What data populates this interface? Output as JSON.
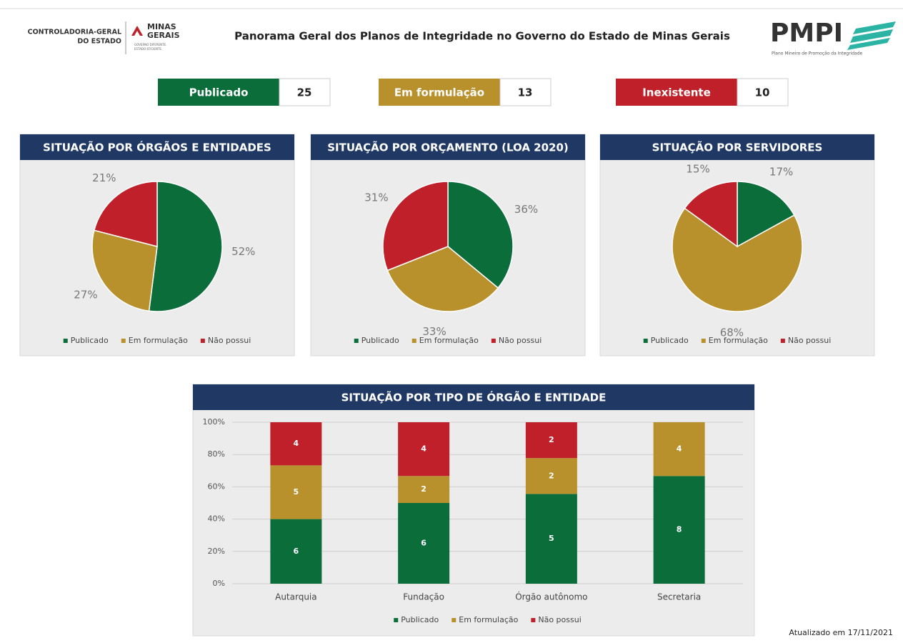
{
  "header": {
    "org": [
      "CONTROLADORIA-GERAL",
      "DO ESTADO"
    ],
    "brand": [
      "MINAS",
      "GERAIS"
    ],
    "brand_tagline": [
      "GOVERNO DIFERENTE.",
      "ESTADO EFICIENTE."
    ],
    "title": "Panorama Geral dos Planos de Integridade no Governo do Estado de Minas Gerais",
    "program": "PMPI",
    "program_name": "Plano Mineiro de Promoção da Integridade"
  },
  "kpis": [
    {
      "label": "Publicado",
      "value": 25,
      "color": "#0b6e3a"
    },
    {
      "label": "Em formulação",
      "value": 13,
      "color": "#b8902c"
    },
    {
      "label": "Inexistente",
      "value": 10,
      "color": "#c0202a"
    }
  ],
  "chart_data": [
    {
      "type": "pie",
      "title": "SITUAÇÃO POR ÓRGÃOS E ENTIDADES",
      "categories": [
        "Publicado",
        "Em formulação",
        "Não possui"
      ],
      "values": [
        52,
        27,
        21
      ],
      "value_labels": [
        "52%",
        "27%",
        "21%"
      ],
      "colors": [
        "#0b6e3a",
        "#b8902c",
        "#c0202a"
      ]
    },
    {
      "type": "pie",
      "title": "SITUAÇÃO POR ORÇAMENTO (LOA 2020)",
      "categories": [
        "Publicado",
        "Em formulação",
        "Não possui"
      ],
      "values": [
        36,
        33,
        31
      ],
      "value_labels": [
        "36%",
        "33%",
        "31%"
      ],
      "colors": [
        "#0b6e3a",
        "#b8902c",
        "#c0202a"
      ]
    },
    {
      "type": "pie",
      "title": "SITUAÇÃO POR SERVIDORES",
      "categories": [
        "Publicado",
        "Em formulação",
        "Não possui"
      ],
      "values": [
        17,
        68,
        15
      ],
      "value_labels": [
        "17%",
        "68%",
        "15%"
      ],
      "colors": [
        "#0b6e3a",
        "#b8902c",
        "#c0202a"
      ]
    },
    {
      "type": "bar",
      "stacked": true,
      "title": "SITUAÇÃO POR TIPO DE ÓRGÃO E ENTIDADE",
      "categories": [
        "Autarquia",
        "Fundação",
        "Órgão autônomo",
        "Secretaria"
      ],
      "series": [
        {
          "name": "Publicado",
          "color": "#0b6e3a",
          "values": [
            40,
            50,
            55.6,
            66.7
          ],
          "value_labels": [
            "6",
            "6",
            "5",
            "8"
          ]
        },
        {
          "name": "Em formulação",
          "color": "#b8902c",
          "values": [
            33.3,
            16.7,
            22.2,
            33.3
          ],
          "value_labels": [
            "5",
            "2",
            "2",
            "4"
          ]
        },
        {
          "name": "Não possui",
          "color": "#c0202a",
          "values": [
            26.7,
            33.3,
            22.2,
            null
          ],
          "value_labels": [
            "4",
            "4",
            "2",
            null
          ]
        }
      ],
      "ylim": [
        0,
        100
      ],
      "yticks": [
        {
          "value": 0,
          "label": "0%"
        },
        {
          "value": 20,
          "label": "20%"
        },
        {
          "value": 40,
          "label": "40%"
        },
        {
          "value": 60,
          "label": "60%"
        },
        {
          "value": 80,
          "label": "80%"
        },
        {
          "value": 100,
          "label": "100%"
        }
      ],
      "grid": true
    }
  ],
  "footer": "Atualizado em 17/11/2021"
}
